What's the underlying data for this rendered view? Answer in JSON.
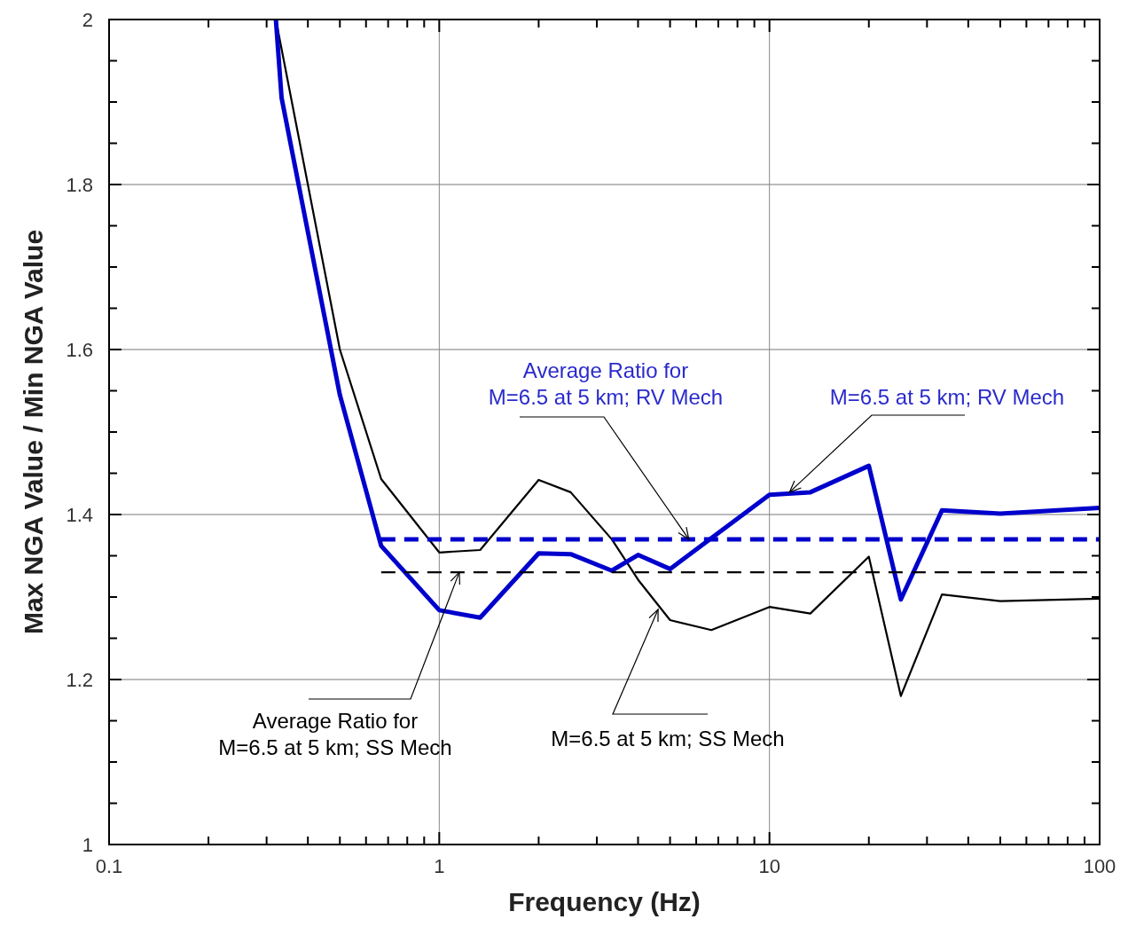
{
  "chart_data": {
    "type": "line",
    "xlabel": "Frequency (Hz)",
    "ylabel": "Max NGA Value / Min NGA Value",
    "log": "x",
    "grid": true,
    "marker": "none",
    "xlim": [
      0.1,
      100
    ],
    "xticks": [
      0.1,
      {
        "value": 0.2,
        "label": null
      },
      {
        "value": 0.3,
        "label": null
      },
      {
        "value": 0.4,
        "label": null
      },
      {
        "value": 0.5,
        "label": null
      },
      {
        "value": 0.6,
        "label": null
      },
      {
        "value": 0.7,
        "label": null
      },
      {
        "value": 0.8,
        "label": null
      },
      {
        "value": 0.9,
        "label": null
      },
      1,
      {
        "value": 2,
        "label": null
      },
      {
        "value": 3,
        "label": null
      },
      {
        "value": 4,
        "label": null
      },
      {
        "value": 5,
        "label": null
      },
      {
        "value": 6,
        "label": null
      },
      {
        "value": 7,
        "label": null
      },
      {
        "value": 8,
        "label": null
      },
      {
        "value": 9,
        "label": null
      },
      10,
      {
        "value": 20,
        "label": null
      },
      {
        "value": 30,
        "label": null
      },
      {
        "value": 40,
        "label": null
      },
      {
        "value": 50,
        "label": null
      },
      {
        "value": 60,
        "label": null
      },
      {
        "value": 70,
        "label": null
      },
      {
        "value": 80,
        "label": null
      },
      {
        "value": 90,
        "label": null
      },
      100
    ],
    "ylim": [
      1,
      2
    ],
    "yticks": [
      1,
      {
        "value": 1.05,
        "label": null
      },
      {
        "value": 1.1,
        "label": null
      },
      {
        "value": 1.15,
        "label": null
      },
      1.2,
      {
        "value": 1.25,
        "label": null
      },
      {
        "value": 1.3,
        "label": null
      },
      {
        "value": 1.35,
        "label": null
      },
      1.4,
      {
        "value": 1.45,
        "label": null
      },
      {
        "value": 1.5,
        "label": null
      },
      {
        "value": 1.55,
        "label": null
      },
      1.6,
      {
        "value": 1.65,
        "label": null
      },
      {
        "value": 1.7,
        "label": null
      },
      {
        "value": 1.75,
        "label": null
      },
      1.8,
      {
        "value": 1.85,
        "label": null
      },
      {
        "value": 1.9,
        "label": null
      },
      {
        "value": 1.95,
        "label": null
      },
      2
    ],
    "series": [
      {
        "color": "#000000",
        "line_style": "solid",
        "x": [
          0.32,
          0.5,
          0.667,
          1,
          1.33,
          2,
          2.5,
          3.33,
          4,
          5,
          6.67,
          10,
          13.3,
          20,
          25,
          33.3,
          50,
          100
        ],
        "values": [
          2.0,
          1.6,
          1.443,
          1.354,
          1.357,
          1.442,
          1.427,
          1.37,
          1.321,
          1.272,
          1.26,
          1.288,
          1.28,
          1.349,
          1.18,
          1.303,
          1.295,
          1.298
        ]
      },
      {
        "color": "#0000cc",
        "line_style": "solid",
        "x": [
          0.32,
          0.333,
          0.5,
          0.667,
          1,
          1.33,
          2,
          2.5,
          3.33,
          4,
          5,
          10,
          13.3,
          20,
          25,
          33.3,
          50,
          100
        ],
        "values": [
          2.0,
          1.905,
          1.545,
          1.362,
          1.284,
          1.275,
          1.353,
          1.352,
          1.332,
          1.351,
          1.334,
          1.424,
          1.427,
          1.459,
          1.297,
          1.405,
          1.401,
          1.408
        ]
      },
      {
        "color": "#0000cc",
        "line_style": "dashed",
        "x": [
          0.667,
          100
        ],
        "values": [
          1.37,
          1.37
        ]
      },
      {
        "color": "#000000",
        "line_style": "dashed",
        "x": [
          0.667,
          100
        ],
        "values": [
          1.33,
          1.33
        ]
      }
    ],
    "annotations": [
      {
        "text": "Average Ratio for\nM=6.5 at 5 km; RV Mech",
        "x": 5.7,
        "y": 1.37
      },
      {
        "text": "M=6.5 at 5 km; RV Mech",
        "x": 11.5,
        "y": 1.427
      },
      {
        "text": "Average Ratio for\nM=6.5 at 5 km; SS Mech",
        "x": 1.15,
        "y": 1.33
      },
      {
        "text": "M=6.5 at 5 km; SS Mech",
        "x": 4.6,
        "y": 1.285
      }
    ]
  }
}
